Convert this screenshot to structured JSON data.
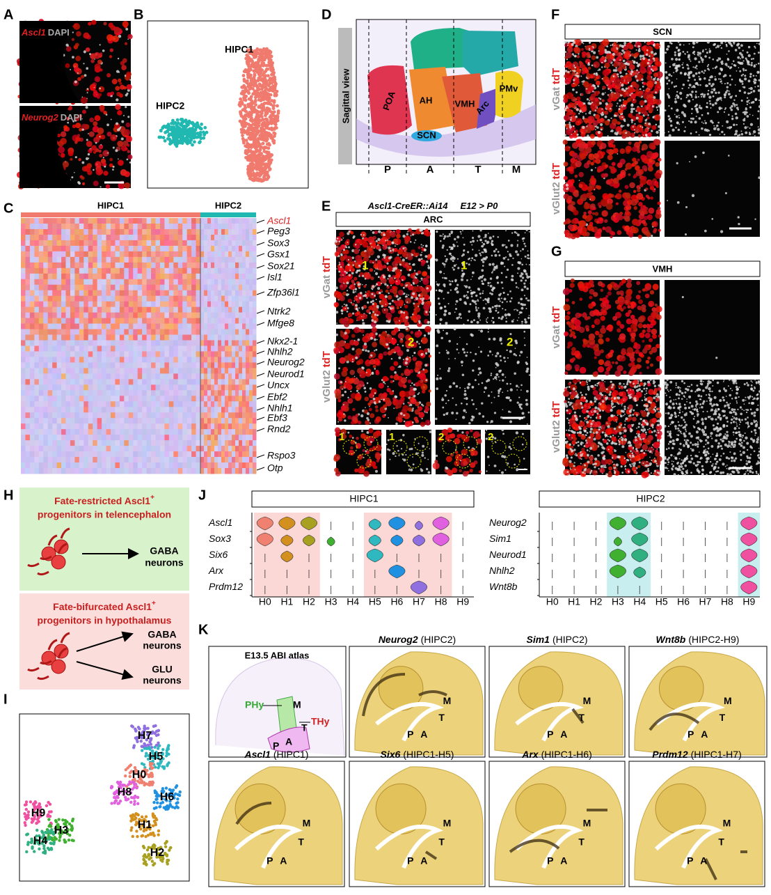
{
  "panel_labels": [
    "A",
    "B",
    "C",
    "D",
    "E",
    "F",
    "G",
    "H",
    "I",
    "J",
    "K"
  ],
  "a": {
    "top": {
      "marker": "Ascl1",
      "counterstain": "DAPI"
    },
    "bottom": {
      "marker": "Neurog2",
      "counterstain": "DAPI"
    }
  },
  "b": {
    "clusters": [
      "HIPC1",
      "HIPC2"
    ]
  },
  "c": {
    "groups": [
      "HIPC1",
      "HIPC2"
    ],
    "genes": [
      "Ascl1",
      "Peg3",
      "Sox3",
      "Gsx1",
      "Sox21",
      "Isl1",
      "Zfp36l1",
      "Ntrk2",
      "Mfge8",
      "Nkx2-1",
      "Nhlh2",
      "Neurog2",
      "Neurod1",
      "Uncx",
      "Ebf2",
      "Nhlh1",
      "Ebf3",
      "Rnd2",
      "Rspo3",
      "Otp"
    ]
  },
  "d": {
    "title": "Sagittal view",
    "regions": [
      "POA",
      "AH",
      "VMH",
      "Arc",
      "PMv",
      "SCN"
    ],
    "axis": [
      "P",
      "A",
      "T",
      "M"
    ]
  },
  "e": {
    "genotype": "Ascl1-CreER::Ai14",
    "timing": "E12 > P0",
    "region": "ARC",
    "rows": [
      {
        "marker": "vGat",
        "reporter": "tdT"
      },
      {
        "marker": "vGlut2",
        "reporter": "tdT"
      }
    ],
    "spots": [
      "1",
      "2"
    ],
    "insets": [
      "1",
      "1",
      "2",
      "2"
    ]
  },
  "f": {
    "region": "SCN",
    "rows": [
      {
        "marker": "vGat",
        "reporter": "tdT"
      },
      {
        "marker": "vGlut2",
        "reporter": "tdT"
      }
    ]
  },
  "g": {
    "region": "VMH",
    "rows": [
      {
        "marker": "vGat",
        "reporter": "tdT"
      },
      {
        "marker": "vGlut2",
        "reporter": "tdT"
      }
    ]
  },
  "h": {
    "top": {
      "line1": "Fate-restricted Ascl1",
      "sup": "+",
      "line2": "progenitors in telencephalon",
      "outputs": [
        [
          "GABA",
          "neurons"
        ]
      ]
    },
    "bottom": {
      "line1": "Fate-bifurcated Ascl1",
      "sup": "+",
      "line2": "progenitors in hypothalamus",
      "outputs": [
        [
          "GABA",
          "neurons"
        ],
        [
          "GLU",
          "neurons"
        ]
      ]
    }
  },
  "i": {
    "clusters": [
      "H7",
      "H5",
      "H0",
      "H8",
      "H6",
      "H1",
      "H2",
      "H9",
      "H3",
      "H4"
    ]
  },
  "j": {
    "clusters": [
      "H0",
      "H1",
      "H2",
      "H3",
      "H4",
      "H5",
      "H6",
      "H7",
      "H8",
      "H9"
    ],
    "colors": [
      "#f08070",
      "#d4901e",
      "#a8a020",
      "#40b030",
      "#30b080",
      "#30b8c0",
      "#2090e0",
      "#9070e0",
      "#e060e0",
      "#f050a0"
    ],
    "groups": [
      {
        "name": "HIPC1",
        "genes": [
          {
            "gene": "Ascl1",
            "levels": [
              3,
              3,
              3,
              0,
              0,
              2,
              3,
              1,
              3,
              0
            ]
          },
          {
            "gene": "Sox3",
            "levels": [
              3,
              2,
              2,
              1,
              0,
              2,
              2,
              2,
              3,
              0
            ]
          },
          {
            "gene": "Six6",
            "levels": [
              0,
              2,
              0,
              0,
              0,
              3,
              0,
              0,
              0,
              0
            ]
          },
          {
            "gene": "Arx",
            "levels": [
              0,
              0,
              0,
              0,
              0,
              0,
              3,
              0,
              0,
              0
            ]
          },
          {
            "gene": "Prdm12",
            "levels": [
              0,
              0,
              0,
              0,
              0,
              0,
              0,
              3,
              0,
              0
            ]
          }
        ]
      },
      {
        "name": "HIPC2",
        "genes": [
          {
            "gene": "Neurog2",
            "levels": [
              0,
              0,
              0,
              3,
              3,
              0,
              0,
              0,
              0,
              3
            ]
          },
          {
            "gene": "Sim1",
            "levels": [
              0,
              0,
              0,
              1,
              3,
              0,
              0,
              0,
              0,
              3
            ]
          },
          {
            "gene": "Neurod1",
            "levels": [
              0,
              0,
              0,
              3,
              3,
              0,
              0,
              0,
              0,
              3
            ]
          },
          {
            "gene": "Nhlh2",
            "levels": [
              0,
              0,
              0,
              3,
              2,
              0,
              0,
              0,
              0,
              3
            ]
          },
          {
            "gene": "Wnt8b",
            "levels": [
              0,
              0,
              0,
              0,
              0,
              0,
              0,
              0,
              0,
              3
            ]
          }
        ]
      }
    ]
  },
  "k": {
    "atlas": {
      "title": "E13.5 ABI atlas",
      "labels": [
        "PHy",
        "M",
        "THy",
        "T",
        "P",
        "A"
      ]
    },
    "sections": [
      {
        "gene": "Neurog2",
        "group": "(HIPC2)",
        "landmarks": [
          "M",
          "T",
          "P",
          "A"
        ]
      },
      {
        "gene": "Sim1",
        "group": "(HIPC2)",
        "landmarks": [
          "M",
          "T",
          "P",
          "A"
        ]
      },
      {
        "gene": "Wnt8b",
        "group": "(HIPC2-H9)",
        "landmarks": [
          "M",
          "T",
          "P",
          "A"
        ]
      },
      {
        "gene": "Ascl1",
        "group": "(HIPC1)",
        "landmarks": [
          "M",
          "T",
          "P",
          "A"
        ]
      },
      {
        "gene": "Six6",
        "group": "(HIPC1-H5)",
        "landmarks": [
          "M",
          "T",
          "P",
          "A"
        ]
      },
      {
        "gene": "Arx",
        "group": "(HIPC1-H6)",
        "landmarks": [
          "M",
          "T",
          "P",
          "A"
        ]
      },
      {
        "gene": "Prdm12",
        "group": "(HIPC1-H7)",
        "landmarks": [
          "M",
          "T",
          "P",
          "A"
        ]
      }
    ]
  }
}
